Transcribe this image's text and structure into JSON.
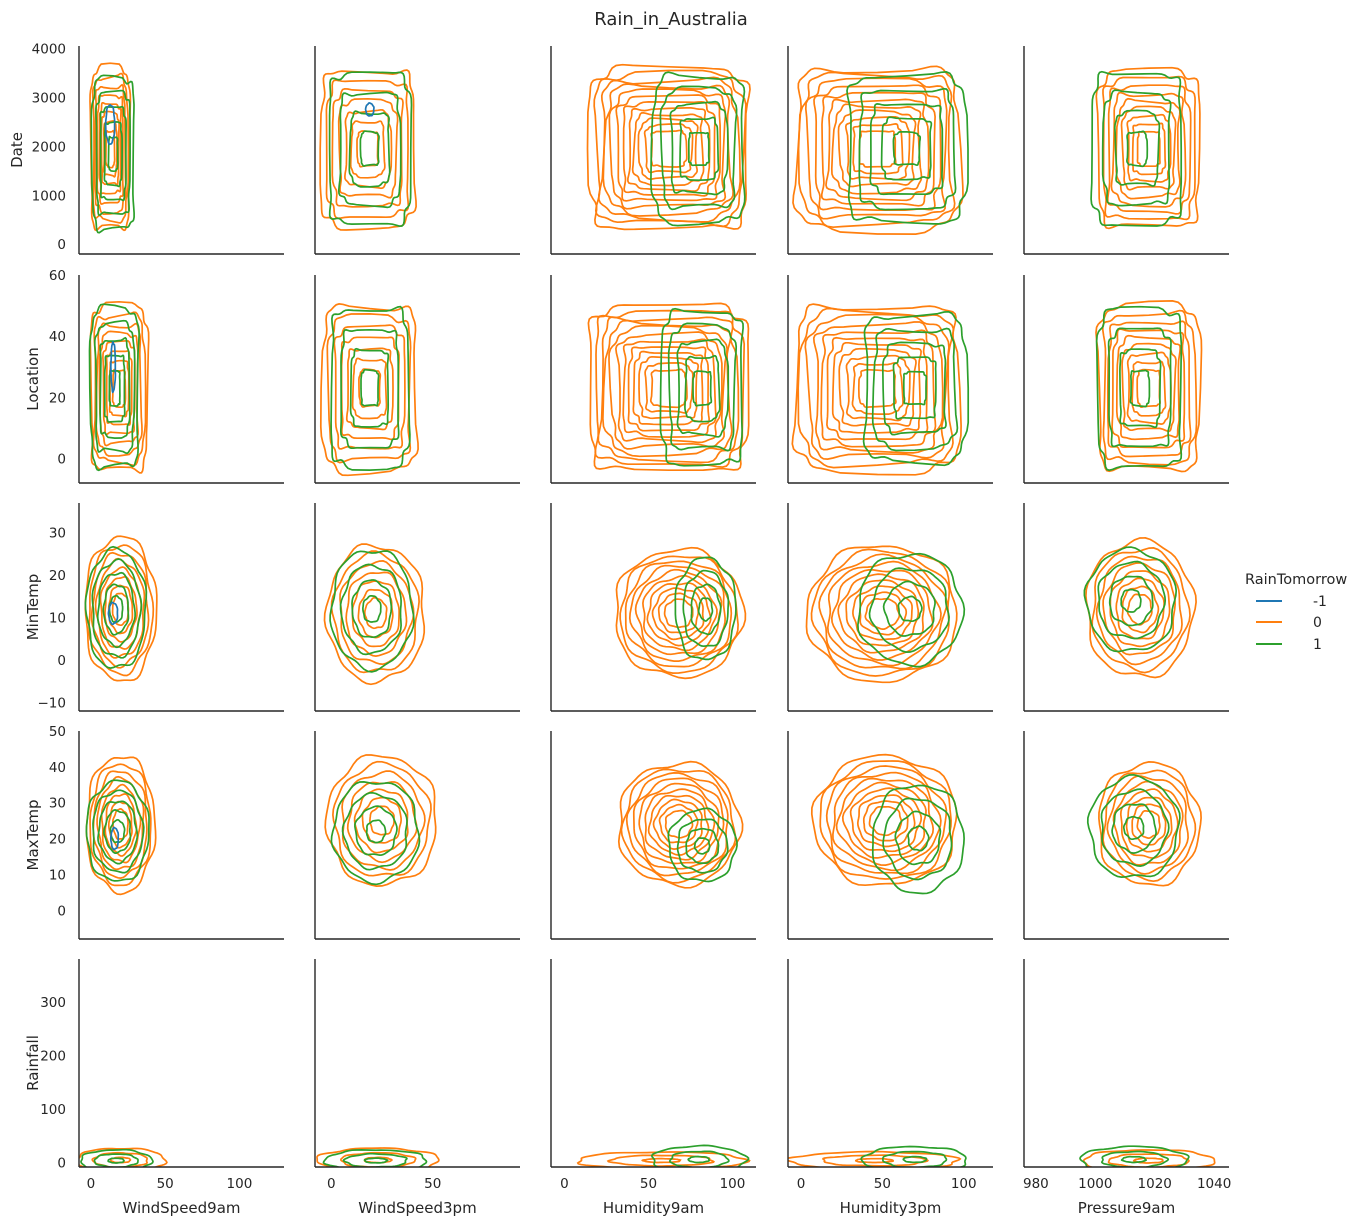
{
  "chart_data": {
    "type": "kde-pairgrid",
    "title": "Rain_in_Australia",
    "x_variables": [
      {
        "name": "WindSpeed9am",
        "xlim": [
          -8,
          130
        ],
        "ticks": [
          0,
          50,
          100
        ]
      },
      {
        "name": "WindSpeed3pm",
        "xlim": [
          -8,
          93
        ],
        "ticks": [
          0,
          50
        ]
      },
      {
        "name": "Humidity9am",
        "xlim": [
          -8,
          114
        ],
        "ticks": [
          0,
          50,
          100
        ]
      },
      {
        "name": "Humidity3pm",
        "xlim": [
          -8,
          118
        ],
        "ticks": [
          0,
          50,
          100
        ]
      },
      {
        "name": "Pressure9am",
        "xlim": [
          976,
          1045
        ],
        "ticks": [
          980,
          1000,
          1020,
          1040
        ]
      }
    ],
    "y_variables": [
      {
        "name": "Date",
        "ylim": [
          -200,
          4050
        ],
        "ticks": [
          0,
          1000,
          2000,
          3000,
          4000
        ]
      },
      {
        "name": "Location",
        "ylim": [
          -8,
          60
        ],
        "ticks": [
          0,
          20,
          40,
          60
        ]
      },
      {
        "name": "MinTemp",
        "ylim": [
          -12,
          37
        ],
        "ticks": [
          -10,
          0,
          10,
          20,
          30
        ]
      },
      {
        "name": "MaxTemp",
        "ylim": [
          -8,
          50
        ],
        "ticks": [
          0,
          10,
          20,
          30,
          40,
          50
        ]
      },
      {
        "name": "Rainfall",
        "ylim": [
          -8,
          380
        ],
        "ticks": [
          0,
          100,
          200,
          300
        ]
      }
    ],
    "hue": {
      "name": "RainTomorrow",
      "levels": [
        {
          "label": "-1",
          "color": "#1f77b4"
        },
        {
          "label": "0",
          "color": "#ff7f0e"
        },
        {
          "label": "1",
          "color": "#2ca02c"
        }
      ]
    },
    "grid": false,
    "legend_position": "right",
    "panels": [
      [
        {
          "hue": "0",
          "cx": 13,
          "cy": 1950,
          "rx": 13,
          "ry": 1650,
          "n": 8,
          "shape": "rect"
        },
        {
          "hue": "1",
          "cx": 15,
          "cy": 1850,
          "rx": 14,
          "ry": 1550,
          "n": 5,
          "shape": "rect"
        },
        {
          "hue": "-1",
          "cx": 13,
          "cy": 2450,
          "rx": 3,
          "ry": 400,
          "n": 1,
          "shape": "round"
        }
      ],
      [
        {
          "hue": "0",
          "cx": 18,
          "cy": 1950,
          "rx": 23,
          "ry": 1600,
          "n": 7,
          "shape": "rect"
        },
        {
          "hue": "1",
          "cx": 19,
          "cy": 1950,
          "rx": 20,
          "ry": 1550,
          "n": 4,
          "shape": "rect"
        },
        {
          "hue": "-1",
          "cx": 19,
          "cy": 2750,
          "rx": 2,
          "ry": 130,
          "n": 1,
          "shape": "round"
        }
      ],
      [
        {
          "hue": "0",
          "cx": 62,
          "cy": 1950,
          "rx": 47,
          "ry": 1650,
          "n": 12,
          "shape": "rect"
        },
        {
          "hue": "1",
          "cx": 80,
          "cy": 1950,
          "rx": 27,
          "ry": 1500,
          "n": 5,
          "shape": "rect"
        }
      ],
      [
        {
          "hue": "0",
          "cx": 47,
          "cy": 1950,
          "rx": 50,
          "ry": 1650,
          "n": 11,
          "shape": "rect"
        },
        {
          "hue": "1",
          "cx": 65,
          "cy": 1950,
          "rx": 36,
          "ry": 1500,
          "n": 5,
          "shape": "rect"
        }
      ],
      [
        {
          "hue": "0",
          "cx": 1018,
          "cy": 1950,
          "rx": 17,
          "ry": 1600,
          "n": 9,
          "shape": "rect"
        },
        {
          "hue": "1",
          "cx": 1014,
          "cy": 1950,
          "rx": 15,
          "ry": 1550,
          "n": 4,
          "shape": "rect"
        }
      ],
      [
        {
          "hue": "0",
          "cx": 19,
          "cy": 23,
          "rx": 19,
          "ry": 27,
          "n": 8,
          "shape": "rect"
        },
        {
          "hue": "1",
          "cx": 16,
          "cy": 23,
          "rx": 16,
          "ry": 26,
          "n": 5,
          "shape": "rect"
        },
        {
          "hue": "-1",
          "cx": 15,
          "cy": 30,
          "rx": 1.5,
          "ry": 8,
          "n": 1,
          "shape": "round"
        }
      ],
      [
        {
          "hue": "0",
          "cx": 19,
          "cy": 23,
          "rx": 23,
          "ry": 27,
          "n": 7,
          "shape": "rect"
        },
        {
          "hue": "1",
          "cx": 19,
          "cy": 23,
          "rx": 19,
          "ry": 26,
          "n": 4,
          "shape": "rect"
        }
      ],
      [
        {
          "hue": "0",
          "cx": 62,
          "cy": 23,
          "rx": 47,
          "ry": 27,
          "n": 12,
          "shape": "rect"
        },
        {
          "hue": "1",
          "cx": 82,
          "cy": 23,
          "rx": 24,
          "ry": 25,
          "n": 5,
          "shape": "rect"
        }
      ],
      [
        {
          "hue": "0",
          "cx": 47,
          "cy": 23,
          "rx": 50,
          "ry": 27,
          "n": 11,
          "shape": "rect"
        },
        {
          "hue": "1",
          "cx": 70,
          "cy": 23,
          "rx": 31,
          "ry": 24,
          "n": 5,
          "shape": "rect"
        }
      ],
      [
        {
          "hue": "0",
          "cx": 1018,
          "cy": 23,
          "rx": 17,
          "ry": 27,
          "n": 9,
          "shape": "rect"
        },
        {
          "hue": "1",
          "cx": 1015,
          "cy": 23,
          "rx": 14,
          "ry": 26,
          "n": 4,
          "shape": "rect"
        }
      ],
      [
        {
          "hue": "0",
          "cx": 20,
          "cy": 12,
          "rx": 24,
          "ry": 17,
          "n": 8,
          "shape": "round"
        },
        {
          "hue": "1",
          "cx": 17,
          "cy": 12,
          "rx": 20,
          "ry": 14,
          "n": 5,
          "shape": "round"
        },
        {
          "hue": "-1",
          "cx": 15,
          "cy": 11,
          "rx": 3,
          "ry": 2.5,
          "n": 1,
          "shape": "round"
        }
      ],
      [
        {
          "hue": "0",
          "cx": 22,
          "cy": 11,
          "rx": 24,
          "ry": 16,
          "n": 7,
          "shape": "round"
        },
        {
          "hue": "1",
          "cx": 20,
          "cy": 12,
          "rx": 20,
          "ry": 14,
          "n": 4,
          "shape": "round"
        }
      ],
      [
        {
          "hue": "0",
          "cx": 68,
          "cy": 11,
          "rx": 38,
          "ry": 15,
          "n": 10,
          "shape": "round"
        },
        {
          "hue": "1",
          "cx": 84,
          "cy": 12,
          "rx": 18,
          "ry": 12,
          "n": 4,
          "shape": "round"
        }
      ],
      [
        {
          "hue": "0",
          "cx": 50,
          "cy": 11,
          "rx": 46,
          "ry": 16,
          "n": 10,
          "shape": "round"
        },
        {
          "hue": "1",
          "cx": 67,
          "cy": 12,
          "rx": 32,
          "ry": 13,
          "n": 4,
          "shape": "round"
        }
      ],
      [
        {
          "hue": "0",
          "cx": 1015,
          "cy": 12,
          "rx": 18,
          "ry": 16,
          "n": 8,
          "shape": "round"
        },
        {
          "hue": "1",
          "cx": 1012,
          "cy": 14,
          "rx": 15,
          "ry": 12,
          "n": 4,
          "shape": "round"
        }
      ],
      [
        {
          "hue": "0",
          "cx": 20,
          "cy": 24,
          "rx": 23,
          "ry": 19,
          "n": 8,
          "shape": "round"
        },
        {
          "hue": "1",
          "cx": 18,
          "cy": 22,
          "rx": 21,
          "ry": 14,
          "n": 5,
          "shape": "round"
        },
        {
          "hue": "-1",
          "cx": 16,
          "cy": 20,
          "rx": 2.5,
          "ry": 3,
          "n": 1,
          "shape": "round"
        }
      ],
      [
        {
          "hue": "0",
          "cx": 25,
          "cy": 25,
          "rx": 27,
          "ry": 18,
          "n": 7,
          "shape": "round"
        },
        {
          "hue": "1",
          "cx": 22,
          "cy": 22,
          "rx": 21,
          "ry": 14,
          "n": 4,
          "shape": "round"
        }
      ],
      [
        {
          "hue": "0",
          "cx": 68,
          "cy": 24,
          "rx": 36,
          "ry": 17,
          "n": 10,
          "shape": "round"
        },
        {
          "hue": "1",
          "cx": 82,
          "cy": 18,
          "rx": 20,
          "ry": 10,
          "n": 4,
          "shape": "round"
        }
      ],
      [
        {
          "hue": "0",
          "cx": 52,
          "cy": 25,
          "rx": 44,
          "ry": 18,
          "n": 10,
          "shape": "round"
        },
        {
          "hue": "1",
          "cx": 72,
          "cy": 20,
          "rx": 28,
          "ry": 15,
          "n": 4,
          "shape": "round"
        }
      ],
      [
        {
          "hue": "0",
          "cx": 1018,
          "cy": 24,
          "rx": 17,
          "ry": 17,
          "n": 8,
          "shape": "round"
        },
        {
          "hue": "1",
          "cx": 1013,
          "cy": 23,
          "rx": 15,
          "ry": 14,
          "n": 4,
          "shape": "round"
        }
      ],
      [
        {
          "hue": "0",
          "cx": 20,
          "cy": 5,
          "rx": 30,
          "ry": 22,
          "n": 3,
          "shape": "round"
        },
        {
          "hue": "1",
          "cx": 17,
          "cy": 4,
          "rx": 24,
          "ry": 20,
          "n": 3,
          "shape": "round"
        }
      ],
      [
        {
          "hue": "0",
          "cx": 23,
          "cy": 5,
          "rx": 30,
          "ry": 22,
          "n": 3,
          "shape": "round"
        },
        {
          "hue": "1",
          "cx": 22,
          "cy": 4,
          "rx": 25,
          "ry": 20,
          "n": 3,
          "shape": "round"
        }
      ],
      [
        {
          "hue": "0",
          "cx": 58,
          "cy": 4,
          "rx": 50,
          "ry": 16,
          "n": 3,
          "shape": "round"
        },
        {
          "hue": "1",
          "cx": 80,
          "cy": 6,
          "rx": 28,
          "ry": 25,
          "n": 3,
          "shape": "round"
        }
      ],
      [
        {
          "hue": "0",
          "cx": 45,
          "cy": 4,
          "rx": 52,
          "ry": 16,
          "n": 3,
          "shape": "round"
        },
        {
          "hue": "1",
          "cx": 70,
          "cy": 6,
          "rx": 32,
          "ry": 24,
          "n": 3,
          "shape": "round"
        }
      ],
      [
        {
          "hue": "0",
          "cx": 1018,
          "cy": 4,
          "rx": 22,
          "ry": 20,
          "n": 3,
          "shape": "round"
        },
        {
          "hue": "1",
          "cx": 1013,
          "cy": 6,
          "rx": 18,
          "ry": 24,
          "n": 3,
          "shape": "round"
        }
      ]
    ]
  }
}
